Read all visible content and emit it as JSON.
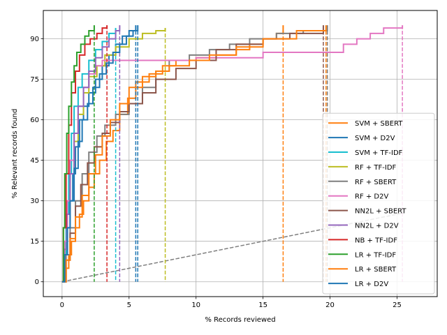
{
  "chart_data": {
    "type": "line",
    "title": "",
    "xlabel": "% Records reviewed",
    "ylabel": "% Relevant records found",
    "xlim": [
      -1.4,
      28
    ],
    "ylim": [
      -5.5,
      100.5
    ],
    "x_ticks": [
      0,
      5,
      10,
      15,
      20,
      25
    ],
    "x_tick_labels": [
      "0",
      "5",
      "10",
      "15",
      "20",
      "25"
    ],
    "y_ticks": [
      0,
      15,
      30,
      45,
      60,
      75,
      90
    ],
    "y_tick_labels": [
      "0",
      "15",
      "30",
      "45",
      "60",
      "75",
      "90"
    ],
    "grid": true,
    "legend_position": "lower-right",
    "baseline": {
      "x": [
        0,
        25.5
      ],
      "y": [
        0,
        25.5
      ],
      "color": "#7f7f7f",
      "style": "dashed"
    },
    "series": [
      {
        "name": "SVM + SBERT",
        "color": "#ff7f0e",
        "stop_x": 16.5,
        "stop_y": 95,
        "x": [
          0,
          0.3,
          0.5,
          0.7,
          1.0,
          1.3,
          1.6,
          2.0,
          2.4,
          2.8,
          3.3,
          3.8,
          4.3,
          4.9,
          5.5,
          6.5,
          7.5,
          8.5,
          10,
          11.5,
          13,
          14,
          15,
          16,
          16.5
        ],
        "y": [
          0,
          5,
          10,
          15,
          20,
          25,
          30,
          35,
          40,
          45,
          52,
          56,
          62,
          68,
          74,
          77,
          80,
          82,
          83,
          84,
          86,
          88,
          90,
          92,
          95
        ]
      },
      {
        "name": "SVM + D2V",
        "color": "#1f77b4",
        "stop_x": 5.5,
        "stop_y": 95,
        "x": [
          0,
          0.2,
          0.4,
          0.6,
          0.8,
          1.0,
          1.3,
          1.6,
          2.0,
          2.5,
          3.0,
          3.5,
          4.0,
          4.5,
          5.0,
          5.5
        ],
        "y": [
          0,
          10,
          20,
          30,
          40,
          50,
          60,
          65,
          70,
          75,
          80,
          84,
          88,
          91,
          93,
          95
        ]
      },
      {
        "name": "SVM + TF-IDF",
        "color": "#17becf",
        "stop_x": 4.0,
        "stop_y": 94,
        "x": [
          0,
          0.15,
          0.3,
          0.5,
          0.7,
          0.9,
          1.2,
          1.5,
          2.0,
          2.5,
          3.0,
          3.5,
          4.0
        ],
        "y": [
          0,
          10,
          25,
          40,
          55,
          65,
          72,
          77,
          82,
          86,
          89,
          92,
          94
        ]
      },
      {
        "name": "RF + TF-IDF",
        "color": "#bcbd22",
        "stop_x": 7.7,
        "stop_y": 94,
        "x": [
          0,
          0.2,
          0.4,
          0.6,
          0.9,
          1.2,
          1.6,
          2.0,
          2.6,
          3.2,
          4.0,
          5.0,
          6.0,
          7.0,
          7.7
        ],
        "y": [
          0,
          12,
          25,
          40,
          52,
          62,
          70,
          76,
          80,
          84,
          87,
          90,
          92,
          93,
          94
        ]
      },
      {
        "name": "RF + SBERT",
        "color": "#7f7f7f",
        "stop_x": 19.8,
        "stop_y": 95,
        "x": [
          0,
          0.3,
          0.6,
          1.0,
          1.5,
          2.0,
          2.6,
          3.2,
          4.0,
          5.0,
          6.0,
          7.0,
          8.0,
          9.5,
          11,
          12.5,
          14,
          16,
          18,
          19.8
        ],
        "y": [
          0,
          10,
          20,
          30,
          40,
          48,
          54,
          58,
          62,
          66,
          72,
          78,
          82,
          84,
          86,
          88,
          90,
          92,
          93,
          95
        ]
      },
      {
        "name": "RF + D2V",
        "color": "#e377c2",
        "stop_x": 25.4,
        "stop_y": 95,
        "x": [
          0,
          0.2,
          0.4,
          0.6,
          0.9,
          1.2,
          1.6,
          2.0,
          2.5,
          3.0,
          5.0,
          10,
          15,
          20,
          21,
          22,
          23,
          24,
          25.4
        ],
        "y": [
          0,
          15,
          30,
          45,
          55,
          65,
          72,
          77,
          80,
          82,
          82,
          83,
          85,
          85,
          88,
          90,
          92,
          94,
          95
        ]
      },
      {
        "name": "NN2L + SBERT",
        "color": "#8c564b",
        "stop_x": 19.5,
        "stop_y": 95,
        "x": [
          0,
          0.3,
          0.6,
          1.0,
          1.4,
          1.9,
          2.4,
          3.0,
          3.6,
          4.3,
          5.0,
          6.0,
          7.0,
          8.5,
          10,
          11.5,
          13,
          15,
          17,
          19.5
        ],
        "y": [
          0,
          8,
          18,
          28,
          36,
          44,
          50,
          55,
          59,
          63,
          66,
          70,
          75,
          79,
          82,
          86,
          88,
          90,
          92,
          95
        ]
      },
      {
        "name": "NN2L + D2V",
        "color": "#9467bd",
        "stop_x": 4.3,
        "stop_y": 95,
        "x": [
          0,
          0.15,
          0.35,
          0.6,
          0.9,
          1.2,
          1.6,
          2.0,
          2.5,
          3.0,
          3.5,
          4.0,
          4.3
        ],
        "y": [
          0,
          12,
          25,
          40,
          55,
          65,
          72,
          78,
          83,
          87,
          90,
          93,
          95
        ]
      },
      {
        "name": "NB + TF-IDF",
        "color": "#d62728",
        "stop_x": 3.35,
        "stop_y": 95,
        "x": [
          0,
          0.1,
          0.3,
          0.5,
          0.7,
          1.0,
          1.3,
          1.7,
          2.1,
          2.6,
          3.0,
          3.35
        ],
        "y": [
          0,
          20,
          40,
          58,
          70,
          78,
          84,
          88,
          90,
          92,
          94,
          95
        ]
      },
      {
        "name": "LR + TF-IDF",
        "color": "#2ca02c",
        "stop_x": 2.4,
        "stop_y": 95,
        "x": [
          0,
          0.1,
          0.2,
          0.35,
          0.5,
          0.7,
          0.9,
          1.1,
          1.4,
          1.7,
          2.0,
          2.4
        ],
        "y": [
          0,
          20,
          40,
          55,
          65,
          74,
          80,
          85,
          88,
          91,
          93,
          95
        ]
      },
      {
        "name": "LR + SBERT",
        "color": "#ff7f0e",
        "stop_x": 19.7,
        "stop_y": 95,
        "x": [
          0,
          0.3,
          0.6,
          1.0,
          1.5,
          2.0,
          2.5,
          3.0,
          3.6,
          4.3,
          5.0,
          6.0,
          7.0,
          8.0,
          9.5,
          11,
          13,
          15,
          17.5,
          19.7
        ],
        "y": [
          0,
          8,
          16,
          24,
          32,
          40,
          47,
          54,
          60,
          66,
          72,
          76,
          78,
          80,
          82,
          84,
          87,
          90,
          93,
          95
        ]
      },
      {
        "name": "LR + D2V",
        "color": "#1f77b4",
        "stop_x": 5.65,
        "stop_y": 95,
        "x": [
          0,
          0.2,
          0.4,
          0.6,
          0.9,
          1.2,
          1.5,
          1.9,
          2.3,
          2.8,
          3.3,
          3.8,
          4.3,
          4.8,
          5.3,
          5.65
        ],
        "y": [
          0,
          10,
          20,
          30,
          42,
          52,
          60,
          66,
          72,
          77,
          81,
          85,
          88,
          91,
          93,
          95
        ]
      }
    ]
  }
}
